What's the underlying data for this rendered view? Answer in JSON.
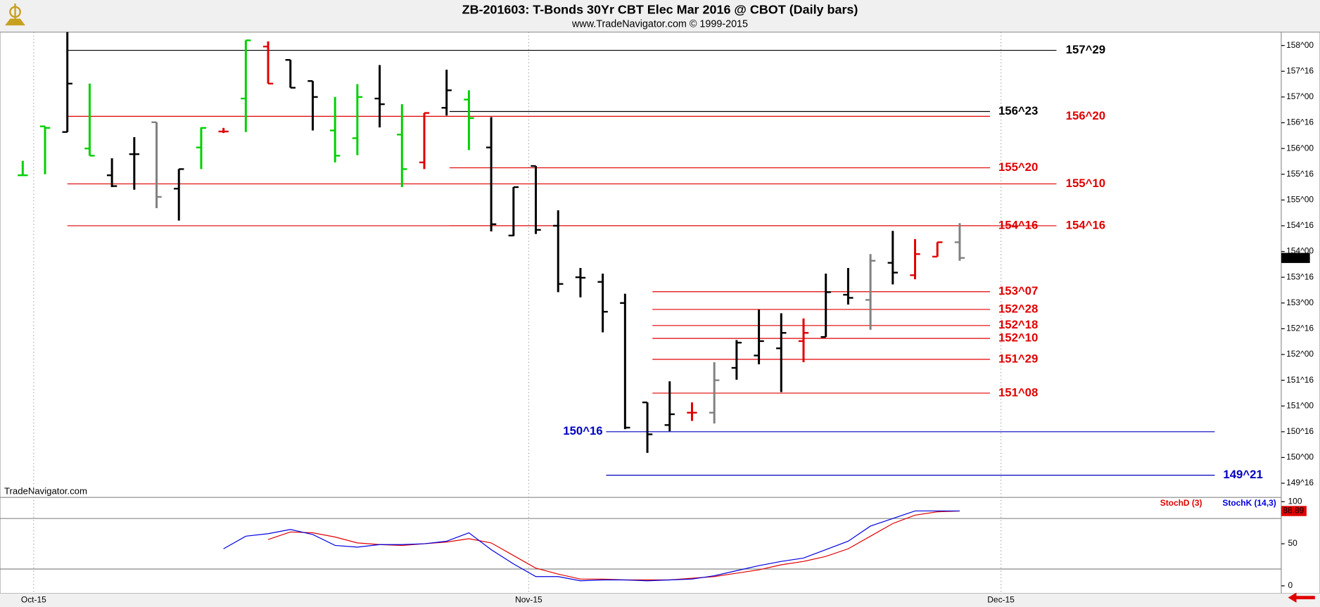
{
  "chart_data": [
    {
      "type": "ohlc",
      "title": "ZB-201603:  T-Bonds 30Yr CBT Elec Mar 2016 @ CBOT  (Daily bars)",
      "subtitle": "www.TradeNavigator.com © 1999-2015",
      "watermark": "TradeNavigator.com",
      "open": [
        155.48,
        156.43,
        156.32,
        156.0,
        155.48,
        155.89,
        156.51,
        155.22,
        156.02,
        156.33,
        156.97,
        157.98,
        157.72,
        157.31,
        156.35,
        156.2,
        156.97,
        156.27,
        155.73,
        156.79,
        156.95,
        156.02,
        154.31,
        155.66,
        154.5,
        153.5,
        153.41,
        153.0,
        151.07,
        150.63,
        150.87,
        150.87,
        151.74,
        151.98,
        152.12,
        152.26,
        152.34,
        153.16,
        153.06,
        153.78,
        153.54,
        153.9,
        154.18
      ],
      "high": [
        155.76,
        156.43,
        158.26,
        157.26,
        155.81,
        156.22,
        156.51,
        155.6,
        156.41,
        156.4,
        158.1,
        158.08,
        157.72,
        157.31,
        157.0,
        157.25,
        157.62,
        156.86,
        156.69,
        157.53,
        157.13,
        156.61,
        155.25,
        155.66,
        154.8,
        153.68,
        153.57,
        153.18,
        151.07,
        151.48,
        151.07,
        151.85,
        152.28,
        152.87,
        152.8,
        152.7,
        153.57,
        153.68,
        153.95,
        154.4,
        154.24,
        154.18,
        154.55
      ],
      "low": [
        155.48,
        155.5,
        156.32,
        155.86,
        155.25,
        155.2,
        154.84,
        154.6,
        155.6,
        156.3,
        156.32,
        157.26,
        157.18,
        156.35,
        155.73,
        155.87,
        156.41,
        155.25,
        155.6,
        156.64,
        155.97,
        154.39,
        154.3,
        154.34,
        153.21,
        153.11,
        152.43,
        150.55,
        150.09,
        150.51,
        150.71,
        150.66,
        151.51,
        151.81,
        151.27,
        151.85,
        152.34,
        152.97,
        152.48,
        153.36,
        153.46,
        153.9,
        153.82
      ],
      "close": [
        155.48,
        156.4,
        157.26,
        155.86,
        155.27,
        155.89,
        155.06,
        155.6,
        156.4,
        156.33,
        158.1,
        157.26,
        157.18,
        157.0,
        155.86,
        157.0,
        156.86,
        155.6,
        156.69,
        157.13,
        156.59,
        154.53,
        155.25,
        154.42,
        153.37,
        153.49,
        152.83,
        150.58,
        150.45,
        150.84,
        150.87,
        151.5,
        152.23,
        152.26,
        152.42,
        152.42,
        153.21,
        153.1,
        153.82,
        153.59,
        153.95,
        154.18,
        153.875
      ],
      "colors": [
        "#00d000",
        "#00d000",
        "#000000",
        "#00d000",
        "#000000",
        "#000000",
        "#808080",
        "#000000",
        "#00d000",
        "#e00000",
        "#00d000",
        "#e00000",
        "#000000",
        "#000000",
        "#00d000",
        "#00d000",
        "#000000",
        "#00d000",
        "#e00000",
        "#000000",
        "#00d000",
        "#000000",
        "#000000",
        "#000000",
        "#000000",
        "#000000",
        "#000000",
        "#000000",
        "#000000",
        "#000000",
        "#e00000",
        "#808080",
        "#000000",
        "#000000",
        "#000000",
        "#e00000",
        "#000000",
        "#000000",
        "#808080",
        "#000000",
        "#e00000",
        "#e00000",
        "#808080"
      ],
      "ylim": [
        149.24,
        158.26
      ],
      "yticks": [
        {
          "value": 158,
          "label": "158^00"
        },
        {
          "value": 157.5,
          "label": "157^16"
        },
        {
          "value": 157,
          "label": "157^00"
        },
        {
          "value": 156.5,
          "label": "156^16"
        },
        {
          "value": 156,
          "label": "156^00"
        },
        {
          "value": 155.5,
          "label": "155^16"
        },
        {
          "value": 155,
          "label": "155^00"
        },
        {
          "value": 154.5,
          "label": "154^16"
        },
        {
          "value": 154,
          "label": "154^00"
        },
        {
          "value": 153.5,
          "label": "153^16"
        },
        {
          "value": 153,
          "label": "153^00"
        },
        {
          "value": 152.5,
          "label": "152^16"
        },
        {
          "value": 152,
          "label": "152^00"
        },
        {
          "value": 151.5,
          "label": "151^16"
        },
        {
          "value": 151,
          "label": "151^00"
        },
        {
          "value": 150.5,
          "label": "150^16"
        },
        {
          "value": 150,
          "label": "150^00"
        },
        {
          "value": 149.5,
          "label": "149^16"
        }
      ],
      "xticks": [
        {
          "value": 0.49,
          "label": "Oct-15"
        },
        {
          "value": 22.68,
          "label": "Nov-15"
        },
        {
          "value": 43.85,
          "label": "Dec-15"
        }
      ],
      "levels": [
        {
          "value": 157.90625,
          "label": "157^29",
          "color": "#000000"
        },
        {
          "value": 156.71875,
          "label": "156^23",
          "color": "#000000"
        },
        {
          "value": 156.625,
          "label": "156^20",
          "color": "#e00000"
        },
        {
          "value": 155.625,
          "label": "155^20",
          "color": "#e00000"
        },
        {
          "value": 155.3125,
          "label": "155^10",
          "color": "#e00000"
        },
        {
          "value": 154.5,
          "label": "154^16",
          "color": "#e00000"
        },
        {
          "value": 154.5,
          "label": "154^16",
          "color": "#e00000"
        },
        {
          "value": 153.21875,
          "label": "153^07",
          "color": "#e00000"
        },
        {
          "value": 152.875,
          "label": "152^28",
          "color": "#e00000"
        },
        {
          "value": 152.5625,
          "label": "152^18",
          "color": "#e00000"
        },
        {
          "value": 152.3125,
          "label": "152^10",
          "color": "#e00000"
        },
        {
          "value": 151.90625,
          "label": "151^29",
          "color": "#e00000"
        },
        {
          "value": 151.25,
          "label": "151^08",
          "color": "#e00000"
        },
        {
          "value": 150.5,
          "label": "150^16",
          "color": "#0000c0"
        },
        {
          "value": 149.65625,
          "label": "149^21",
          "color": "#0000c0"
        }
      ],
      "last_price": {
        "value": 153.875,
        "label": "153^28"
      }
    },
    {
      "type": "line",
      "series": [
        {
          "name": "StochD (3)",
          "color": "#e00000",
          "values": [
            null,
            null,
            null,
            null,
            null,
            null,
            null,
            null,
            null,
            null,
            null,
            55,
            64,
            63,
            58,
            51,
            49,
            48,
            50,
            52,
            56,
            51,
            36,
            21,
            14,
            8,
            8,
            7,
            7,
            7,
            9,
            11,
            15,
            19,
            25,
            29,
            35,
            44,
            59,
            74,
            84,
            88,
            88.89
          ]
        },
        {
          "name": "StochK (14,3)",
          "color": "#0000e0",
          "values": [
            null,
            null,
            null,
            null,
            null,
            null,
            null,
            null,
            null,
            44,
            59,
            62,
            67,
            61,
            48,
            46,
            49,
            49,
            50,
            53,
            63,
            43,
            26,
            11,
            11,
            6,
            7,
            7,
            6,
            7,
            8,
            12,
            18,
            24,
            29,
            33,
            43,
            53,
            71,
            80,
            89,
            89,
            89
          ]
        }
      ],
      "ylim": [
        -9,
        105
      ],
      "yticks": [
        0,
        50,
        100
      ],
      "levels": [
        20,
        80
      ]
    }
  ]
}
